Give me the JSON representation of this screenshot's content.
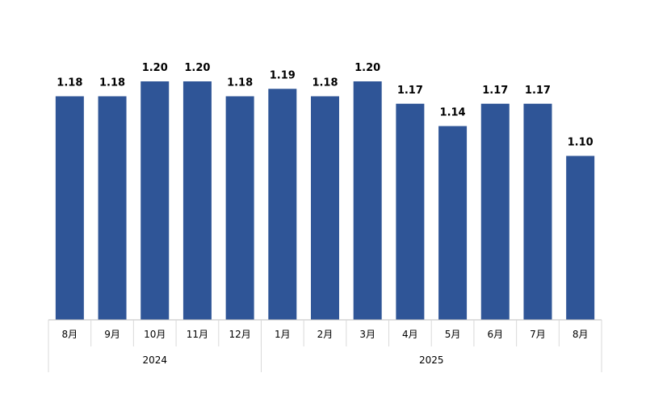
{
  "chart_data": {
    "type": "bar",
    "title": "",
    "xlabel": "",
    "ylabel": "",
    "categories": [
      "8月",
      "9月",
      "10月",
      "11月",
      "12月",
      "1月",
      "2月",
      "3月",
      "4月",
      "5月",
      "6月",
      "7月",
      "8月"
    ],
    "values": [
      1.18,
      1.18,
      1.2,
      1.2,
      1.18,
      1.19,
      1.18,
      1.2,
      1.17,
      1.14,
      1.17,
      1.17,
      1.1
    ],
    "value_labels": [
      "1.18",
      "1.18",
      "1.20",
      "1.20",
      "1.18",
      "1.19",
      "1.18",
      "1.20",
      "1.17",
      "1.14",
      "1.17",
      "1.17",
      "1.10"
    ],
    "year_groups": [
      {
        "label": "2024",
        "start": 0,
        "count": 5
      },
      {
        "label": "2025",
        "start": 5,
        "count": 8
      }
    ],
    "ylim": [
      0.88,
      1.2
    ],
    "grid": false,
    "legend": "none",
    "bar_color": "#2F5597"
  }
}
